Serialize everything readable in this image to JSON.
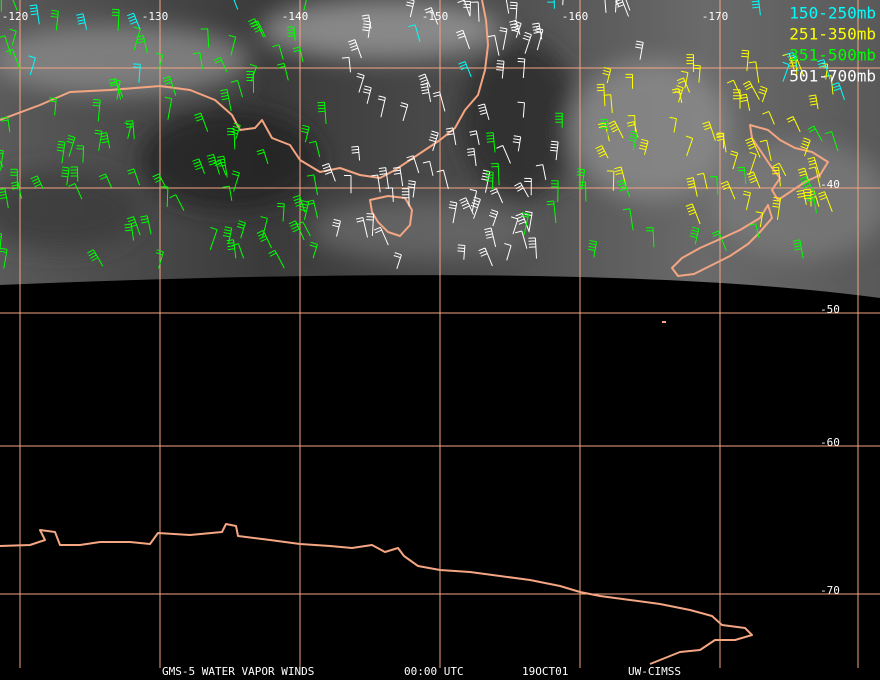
{
  "map": {
    "longitude_labels": [
      "-120",
      "-130",
      "-140",
      "-150",
      "-160",
      "-170"
    ],
    "latitude_labels": [
      "-40",
      "-50",
      "-60",
      "-70"
    ],
    "legend": [
      {
        "label": "150-250mb",
        "color": "#00ffff"
      },
      {
        "label": "251-350mb",
        "color": "#ffff00"
      },
      {
        "label": "351-500mb",
        "color": "#00ff00"
      },
      {
        "label": "501-700mb",
        "color": "#ffffff"
      }
    ],
    "footer": [
      "GMS-5 WATER VAPOR WINDS",
      "00:00 UTC",
      "19OCT01",
      "UW-CIMSS"
    ]
  }
}
